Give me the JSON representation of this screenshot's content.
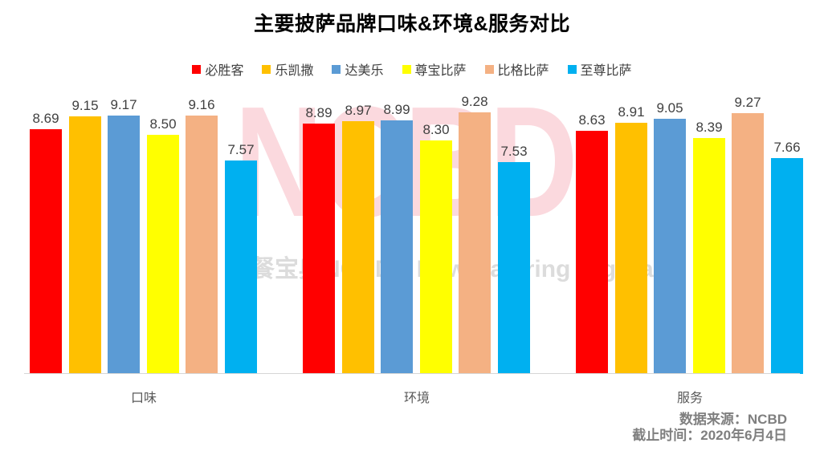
{
  "title": "主要披萨品牌口味&环境&服务对比",
  "chart_data": {
    "type": "bar",
    "categories": [
      "口味",
      "环境",
      "服务"
    ],
    "series": [
      {
        "name": "必胜客",
        "color": "#FF0000",
        "values": [
          8.69,
          8.89,
          8.63
        ]
      },
      {
        "name": "乐凯撒",
        "color": "#FFC000",
        "values": [
          9.15,
          8.97,
          8.91
        ]
      },
      {
        "name": "达美乐",
        "color": "#5B9BD5",
        "values": [
          9.17,
          8.99,
          9.05
        ]
      },
      {
        "name": "尊宝比萨",
        "color": "#FFFF00",
        "values": [
          8.5,
          8.3,
          8.39
        ]
      },
      {
        "name": "比格比萨",
        "color": "#F4B183",
        "values": [
          9.16,
          9.28,
          9.27
        ]
      },
      {
        "name": "至尊比萨",
        "color": "#00B0F0",
        "values": [
          7.57,
          7.53,
          7.66
        ]
      }
    ],
    "title": "主要披萨品牌口味&环境&服务对比",
    "xlabel": "",
    "ylabel": "",
    "value_labels": true,
    "value_label_format": "0.00",
    "legend_position": "top",
    "yaxis_visible": false,
    "gridlines": false,
    "baseline": 0
  },
  "watermark": {
    "big": "NCBD",
    "sub": "餐宝典NCBD丨New Catering Big Data"
  },
  "footer": {
    "source": "数据来源：NCBD",
    "deadline": "截止时间：2020年6月4日"
  }
}
